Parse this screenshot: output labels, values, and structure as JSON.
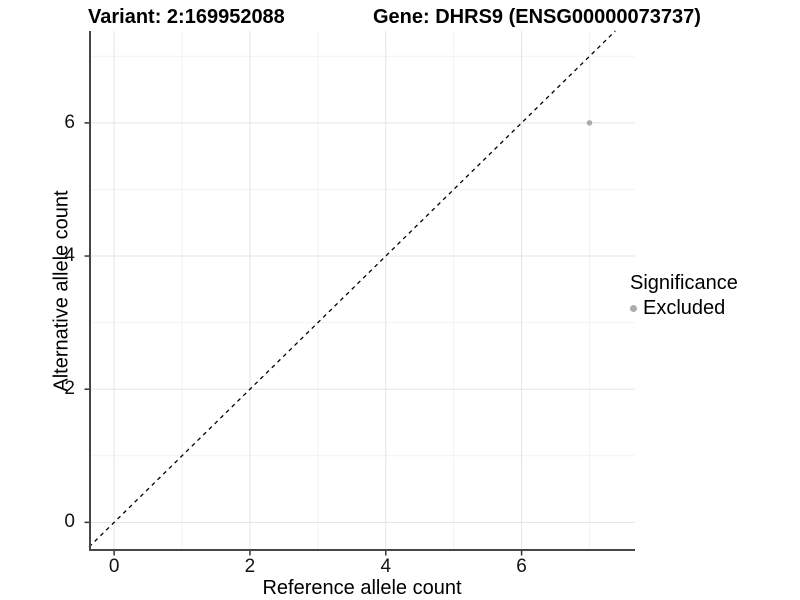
{
  "titles": {
    "variant": "Variant: 2:169952088",
    "gene": "Gene: DHRS9 (ENSG00000073737)"
  },
  "chart_data": {
    "type": "scatter",
    "title": "Variant: 2:169952088    Gene: DHRS9 (ENSG00000073737)",
    "xlabel": "Reference allele count",
    "ylabel": "Alternative allele count",
    "xlim": [
      -0.37,
      7.67
    ],
    "ylim": [
      -0.43,
      7.38
    ],
    "x_ticks": [
      0,
      2,
      4,
      6
    ],
    "y_ticks": [
      0,
      2,
      4,
      6
    ],
    "x_minor_ticks": [
      1,
      3,
      5,
      7
    ],
    "y_minor_ticks": [
      1,
      3,
      5,
      7
    ],
    "grid": true,
    "series": [
      {
        "name": "Excluded",
        "points": [
          {
            "x": 7,
            "y": 6
          }
        ],
        "color": "#ababab"
      }
    ],
    "reference_line": {
      "type": "identity",
      "equation": "y = x",
      "style": "dashed",
      "color": "#000000"
    },
    "legend": {
      "title": "Significance",
      "position": "right",
      "entries": [
        {
          "label": "Excluded",
          "color": "#ababab"
        }
      ]
    }
  },
  "colors": {
    "background": "#ffffff",
    "grid_major": "#e3e3e3",
    "grid_minor": "#f2f2f2",
    "axis_line": "#464646",
    "tick_mark": "#333333",
    "text": "#000000",
    "tick_text": "#141414",
    "point": "#ababab"
  }
}
